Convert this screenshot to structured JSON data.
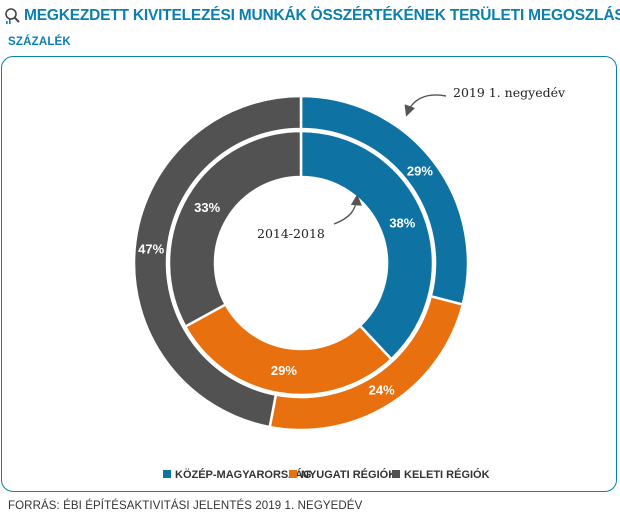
{
  "header": {
    "title": "MEGKEZDETT KIVITELEZÉSI MUNKÁK ÖSSZÉRTÉKÉNEK TERÜLETI MEGOSZLÁSA",
    "subtitle": "SZÁZALÉK",
    "icon": "magnifier-chart-icon"
  },
  "footer": {
    "source": "FORRÁS: ÉBI ÉPÍTÉSAKTIVITÁSI JELENTÉS 2019  1. NEGYEDÉV"
  },
  "colors": {
    "accent": "#0b7fb0",
    "series_blue": "#0e73a3",
    "series_orange": "#e8700f",
    "series_gray": "#525252"
  },
  "chart_data": {
    "type": "pie",
    "categories": [
      "KÖZÉP-MAGYARORSZÁG",
      "NYUGATI RÉGIÓK",
      "KELETI RÉGIÓK"
    ],
    "series": [
      {
        "name": "2019 1. negyedév",
        "ring": "outer",
        "values": [
          29,
          24,
          47
        ],
        "labels": [
          "29%",
          "24%",
          "47%"
        ]
      },
      {
        "name": "2014-2018",
        "ring": "inner",
        "values": [
          38,
          29,
          33
        ],
        "labels": [
          "38%",
          "29%",
          "33%"
        ]
      }
    ],
    "annotations": [
      "2019 1. negyedév",
      "2014-2018"
    ],
    "legend_position": "bottom"
  }
}
